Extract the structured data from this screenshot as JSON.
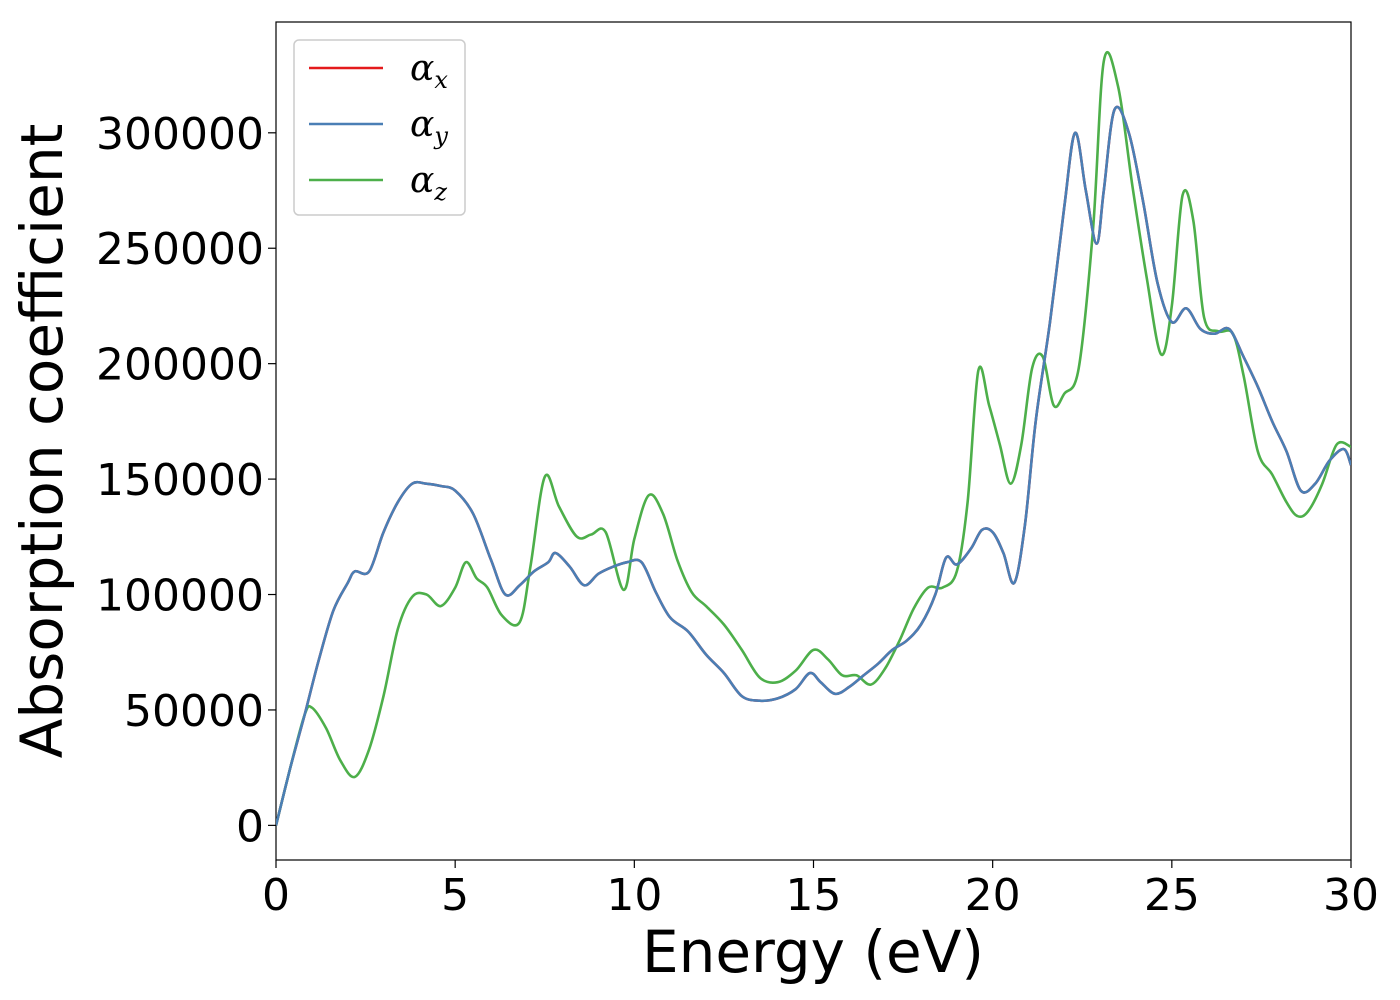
{
  "chart_data": {
    "type": "line",
    "xlabel": "Energy (eV)",
    "ylabel": "Absorption coefficient",
    "xlim": [
      0,
      30
    ],
    "ylim": [
      -15000,
      348000
    ],
    "xticks": [
      0,
      5,
      10,
      15,
      20,
      25,
      30
    ],
    "yticks": [
      0,
      50000,
      100000,
      150000,
      200000,
      250000,
      300000
    ],
    "grid": false,
    "legend_position": "top-left",
    "series": [
      {
        "name": "α",
        "subscript": "x",
        "color": "#e41a1c",
        "x": [
          0,
          0.4,
          0.8,
          1.2,
          1.6,
          2.0,
          2.2,
          2.6,
          3.0,
          3.4,
          3.8,
          4.2,
          4.6,
          5.0,
          5.5,
          6.0,
          6.4,
          6.8,
          7.2,
          7.6,
          7.8,
          8.2,
          8.6,
          9.0,
          9.4,
          9.8,
          10.2,
          10.6,
          11.0,
          11.5,
          12.0,
          12.5,
          13.0,
          13.5,
          14.0,
          14.5,
          14.9,
          15.2,
          15.6,
          16.0,
          16.4,
          16.8,
          17.2,
          17.6,
          18.0,
          18.4,
          18.7,
          19.0,
          19.4,
          19.7,
          20.0,
          20.3,
          20.6,
          20.9,
          21.2,
          21.6,
          22.0,
          22.3,
          22.6,
          22.9,
          23.1,
          23.4,
          23.8,
          24.2,
          24.6,
          25.0,
          25.4,
          25.8,
          26.2,
          26.6,
          27.0,
          27.4,
          27.8,
          28.2,
          28.6,
          29.0,
          29.4,
          29.8,
          30.0
        ],
        "y": [
          0,
          25000,
          48000,
          72000,
          93000,
          105000,
          110000,
          110000,
          127000,
          140000,
          148000,
          148000,
          147000,
          145000,
          135000,
          115000,
          100000,
          104000,
          110000,
          114000,
          118000,
          112000,
          104000,
          109000,
          112000,
          114000,
          114000,
          101000,
          90000,
          84000,
          74000,
          66000,
          56000,
          54000,
          55000,
          59000,
          66000,
          62000,
          57000,
          60000,
          65000,
          70000,
          76000,
          80000,
          87000,
          100000,
          116000,
          113000,
          120000,
          128000,
          127000,
          118000,
          105000,
          130000,
          175000,
          218000,
          268000,
          300000,
          275000,
          252000,
          275000,
          310000,
          300000,
          270000,
          235000,
          218000,
          224000,
          215000,
          213000,
          215000,
          203000,
          190000,
          175000,
          162000,
          145000,
          148000,
          158000,
          163000,
          156000
        ]
      },
      {
        "name": "α",
        "subscript": "y",
        "color": "#4a7fb5",
        "x": [
          0,
          0.4,
          0.8,
          1.2,
          1.6,
          2.0,
          2.2,
          2.6,
          3.0,
          3.4,
          3.8,
          4.2,
          4.6,
          5.0,
          5.5,
          6.0,
          6.4,
          6.8,
          7.2,
          7.6,
          7.8,
          8.2,
          8.6,
          9.0,
          9.4,
          9.8,
          10.2,
          10.6,
          11.0,
          11.5,
          12.0,
          12.5,
          13.0,
          13.5,
          14.0,
          14.5,
          14.9,
          15.2,
          15.6,
          16.0,
          16.4,
          16.8,
          17.2,
          17.6,
          18.0,
          18.4,
          18.7,
          19.0,
          19.4,
          19.7,
          20.0,
          20.3,
          20.6,
          20.9,
          21.2,
          21.6,
          22.0,
          22.3,
          22.6,
          22.9,
          23.1,
          23.4,
          23.8,
          24.2,
          24.6,
          25.0,
          25.4,
          25.8,
          26.2,
          26.6,
          27.0,
          27.4,
          27.8,
          28.2,
          28.6,
          29.0,
          29.4,
          29.8,
          30.0
        ],
        "y": [
          0,
          25000,
          48000,
          72000,
          93000,
          105000,
          110000,
          110000,
          127000,
          140000,
          148000,
          148000,
          147000,
          145000,
          135000,
          115000,
          100000,
          104000,
          110000,
          114000,
          118000,
          112000,
          104000,
          109000,
          112000,
          114000,
          114000,
          101000,
          90000,
          84000,
          74000,
          66000,
          56000,
          54000,
          55000,
          59000,
          66000,
          62000,
          57000,
          60000,
          65000,
          70000,
          76000,
          80000,
          87000,
          100000,
          116000,
          113000,
          120000,
          128000,
          127000,
          118000,
          105000,
          130000,
          175000,
          218000,
          268000,
          300000,
          275000,
          252000,
          275000,
          310000,
          300000,
          270000,
          235000,
          218000,
          224000,
          215000,
          213000,
          215000,
          203000,
          190000,
          175000,
          162000,
          145000,
          148000,
          158000,
          163000,
          156000
        ]
      },
      {
        "name": "α",
        "subscript": "z",
        "color": "#4daf4a",
        "x": [
          0,
          0.4,
          0.8,
          1.0,
          1.4,
          1.8,
          2.2,
          2.6,
          3.0,
          3.4,
          3.8,
          4.2,
          4.6,
          5.0,
          5.3,
          5.6,
          5.9,
          6.3,
          6.8,
          7.1,
          7.5,
          7.9,
          8.4,
          8.8,
          9.2,
          9.7,
          10.0,
          10.4,
          10.8,
          11.2,
          11.6,
          12.0,
          12.5,
          13.0,
          13.5,
          14.0,
          14.5,
          15.0,
          15.4,
          15.8,
          16.2,
          16.6,
          17.0,
          17.4,
          17.8,
          18.2,
          18.6,
          19.0,
          19.3,
          19.6,
          19.9,
          20.2,
          20.5,
          20.8,
          21.1,
          21.4,
          21.7,
          22.0,
          22.4,
          22.8,
          23.1,
          23.5,
          23.9,
          24.3,
          24.7,
          25.0,
          25.3,
          25.6,
          25.9,
          26.3,
          26.7,
          27.0,
          27.4,
          27.8,
          28.2,
          28.5,
          28.8,
          29.2,
          29.6,
          30.0
        ],
        "y": [
          0,
          25000,
          48000,
          51000,
          42000,
          28000,
          21000,
          33000,
          56000,
          85000,
          99000,
          100000,
          95000,
          103000,
          114000,
          107000,
          103000,
          91000,
          88000,
          112000,
          151000,
          138000,
          125000,
          126000,
          127000,
          102000,
          124000,
          143000,
          135000,
          115000,
          101000,
          95000,
          87000,
          76000,
          64000,
          62000,
          67000,
          76000,
          72000,
          65000,
          65000,
          61000,
          68000,
          80000,
          94000,
          103000,
          103000,
          110000,
          140000,
          197000,
          182000,
          165000,
          148000,
          165000,
          198000,
          203000,
          182000,
          187000,
          198000,
          258000,
          331000,
          320000,
          277000,
          237000,
          204000,
          225000,
          273000,
          262000,
          220000,
          214000,
          213000,
          195000,
          162000,
          152000,
          140000,
          134000,
          136000,
          148000,
          165000,
          164000
        ]
      }
    ]
  }
}
